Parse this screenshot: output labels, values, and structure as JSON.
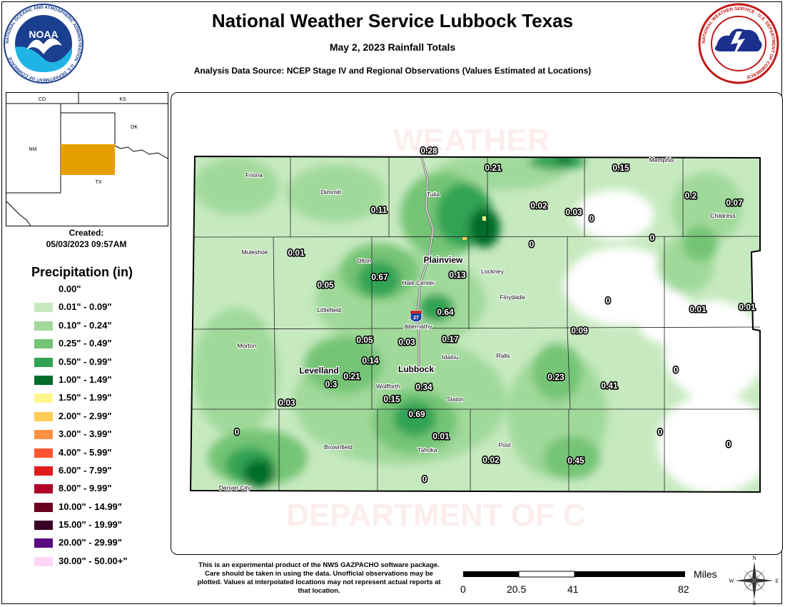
{
  "header": {
    "title": "National Weather Service Lubbock Texas",
    "subtitle": "May 2, 2023 Rainfall Totals",
    "source": "Analysis Data Source: NCEP Stage IV and Regional Observations (Values Estimated at Locations)"
  },
  "logos": {
    "noaa_text": "NOAA",
    "noaa_ring": "NATIONAL OCEANIC AND ATMOSPHERIC ADMINISTRATION · U.S. DEPARTMENT OF COMMERCE",
    "nws_ring": "NATIONAL WEATHER SERVICE · U.S. DEPARTMENT OF COMMERCE"
  },
  "inset": {
    "labels": [
      "CO",
      "KS",
      "OK",
      "NM",
      "TX"
    ],
    "highlight_color": "#E69F00"
  },
  "created": {
    "label": "Created:",
    "datetime": "05/03/2023 09:57AM"
  },
  "legend": {
    "title": "Precipitation (in)",
    "items": [
      {
        "label": "0.00\"",
        "color": "#FFFFFF"
      },
      {
        "label": "0.01\" - 0.09\"",
        "color": "#C7E9C0"
      },
      {
        "label": "0.10\" - 0.24\"",
        "color": "#A1D99B"
      },
      {
        "label": "0.25\" - 0.49\"",
        "color": "#74C476"
      },
      {
        "label": "0.50\" - 0.99\"",
        "color": "#31A354"
      },
      {
        "label": "1.00\" - 1.49\"",
        "color": "#006D2C"
      },
      {
        "label": "1.50\" - 1.99\"",
        "color": "#FFF68F"
      },
      {
        "label": "2.00\" - 2.99\"",
        "color": "#FFCC55"
      },
      {
        "label": "3.00\" - 3.99\"",
        "color": "#FF9040"
      },
      {
        "label": "4.00\" - 5.99\"",
        "color": "#FF5530"
      },
      {
        "label": "6.00\" - 7.99\"",
        "color": "#E01B1B"
      },
      {
        "label": "8.00\" - 9.99\"",
        "color": "#B0002A"
      },
      {
        "label": "10.00\" - 14.99\"",
        "color": "#6A0020"
      },
      {
        "label": "15.00\" - 19.99\"",
        "color": "#3A0024"
      },
      {
        "label": "20.00\" - 29.99\"",
        "color": "#5A0A80"
      },
      {
        "label": "30.00\" - 50.00+\"",
        "color": "#FFD6F5"
      }
    ]
  },
  "map": {
    "watermark": "WEATHER · DEPARTMENT OF COMMERCE",
    "highway_shield": "27",
    "cities": [
      "Friona",
      "Dimmitt",
      "Tulia",
      "Memphis",
      "Childress",
      "Muleshoe",
      "Olton",
      "Plainview",
      "Hale Center",
      "Lockney",
      "Floydada",
      "Littlefield",
      "Abernathy",
      "Morton",
      "Levelland",
      "Idalou",
      "Ralls",
      "Lubbock",
      "Wolfforth",
      "Slaton",
      "Brownfield",
      "Tahoka",
      "Post",
      "Denver City"
    ],
    "values": [
      "0.28",
      "0.21",
      "0.15",
      "0.11",
      "0.02",
      "0.03",
      "0",
      "0.2",
      "0.07",
      "0.01",
      "0",
      "0",
      "0.05",
      "0.67",
      "0.13",
      "0.64",
      "0",
      "0.01",
      "0.01",
      "0.05",
      "0.03",
      "0.17",
      "0.09",
      "0.14",
      "0.21",
      "0.3",
      "0.34",
      "0.23",
      "0.41",
      "0",
      "0.03",
      "0.15",
      "0.69",
      "0",
      "0.01",
      "0",
      "0.02",
      "0.45",
      "0",
      "0"
    ]
  },
  "disclaimer": "This is an experimental product of the NWS GAZPACHO software package. Care should be taken in using the data. Unofficial observations may be plotted. Values at interpolated locations may not represent actual reports at that location.",
  "scale": {
    "unit": "Miles",
    "ticks": [
      "0",
      "20.5",
      "41",
      "82"
    ]
  },
  "compass": {
    "n": "N",
    "s": "S",
    "e": "E",
    "w": "W"
  }
}
